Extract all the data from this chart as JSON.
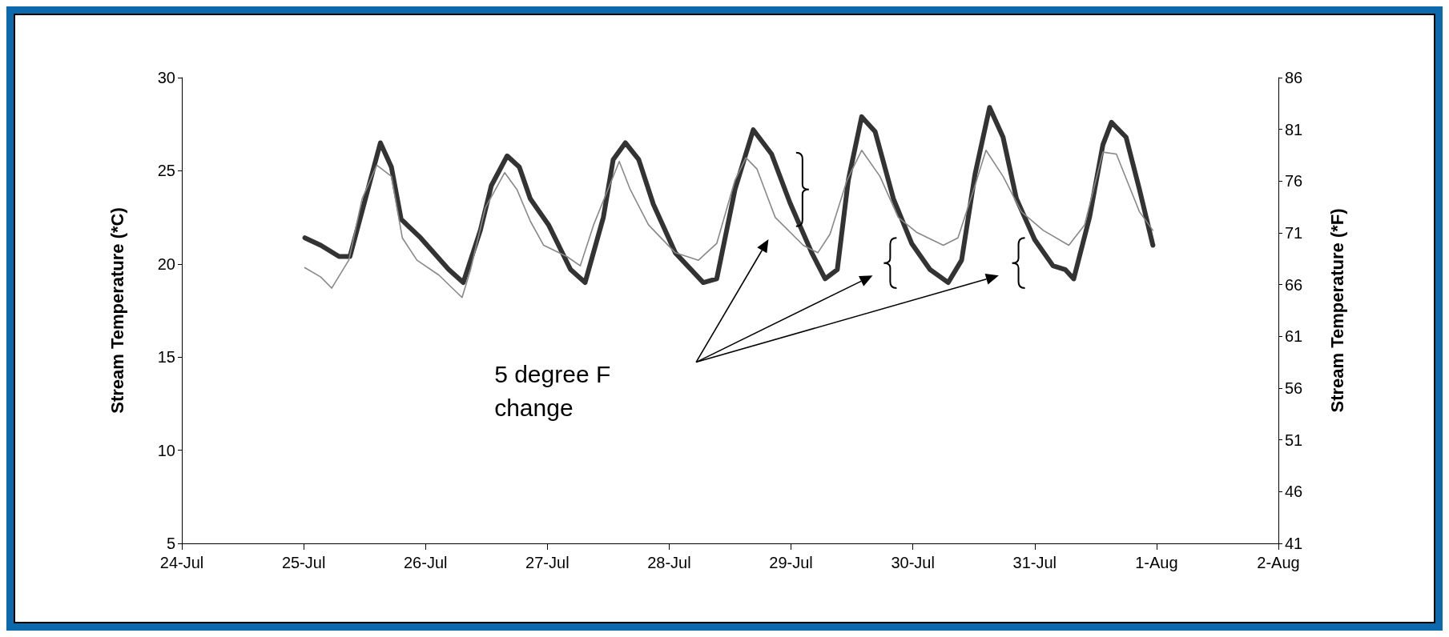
{
  "chart_data": {
    "type": "line",
    "ylabel": "Stream Temperature (*C)",
    "y2label": "Stream Temperature (*F)",
    "xlim": [
      "--07-24",
      "--08-02"
    ],
    "xticks": [
      {
        "value": "--07-24",
        "label": "24-Jul"
      },
      {
        "value": "--07-25",
        "label": "25-Jul"
      },
      {
        "value": "--07-26",
        "label": "26-Jul"
      },
      {
        "value": "--07-27",
        "label": "27-Jul"
      },
      {
        "value": "--07-28",
        "label": "28-Jul"
      },
      {
        "value": "--07-29",
        "label": "29-Jul"
      },
      {
        "value": "--07-30",
        "label": "30-Jul"
      },
      {
        "value": "--07-31",
        "label": "31-Jul"
      },
      {
        "value": "--08-01",
        "label": "1-Aug"
      },
      {
        "value": "--08-02",
        "label": "2-Aug"
      }
    ],
    "ylim": [
      5,
      30
    ],
    "yticks": [
      5,
      10,
      15,
      20,
      25,
      30
    ],
    "y2lim": [
      41,
      86
    ],
    "y2ticks": [
      41,
      46,
      51,
      56,
      61,
      66,
      71,
      76,
      81,
      86
    ],
    "series": [
      {
        "color": "#333333",
        "x": [
          "--07-25T00:14",
          "--07-25T03:22",
          "--07-25T06:58",
          "--07-25T09:07",
          "--07-25T15:07",
          "--07-25T17:17",
          "--07-25T19:12",
          "--07-25T23:02",
          "--07-26T04:34",
          "--07-26T07:26",
          "--07-26T10:48",
          "--07-26T12:58",
          "--07-26T16:05",
          "--07-26T18:29",
          "--07-26T20:38",
          "--07-27T00:14",
          "--07-27T04:34",
          "--07-27T07:26",
          "--07-27T11:02",
          "--07-27T12:58",
          "--07-27T15:22",
          "--07-27T18:00",
          "--07-27T20:53",
          "--07-28T01:12",
          "--07-28T06:43",
          "--07-28T09:22",
          "--07-28T12:58",
          "--07-28T16:34",
          "--07-28T20:10",
          "--07-28T23:46",
          "--07-29T04:05",
          "--07-29T06:43",
          "--07-29T09:07",
          "--07-29T11:17",
          "--07-29T13:55",
          "--07-29T16:34",
          "--07-29T20:10",
          "--07-29T23:46",
          "--07-30T03:22",
          "--07-30T06:58",
          "--07-30T09:36",
          "--07-30T12:14",
          "--07-30T15:07",
          "--07-30T17:46",
          "--07-30T20:24",
          "--07-31T00:00",
          "--07-31T03:36",
          "--07-31T06:00",
          "--07-31T07:41",
          "--07-31T10:48",
          "--07-31T13:26",
          "--07-31T15:07",
          "--07-31T18:00",
          "--07-31T20:38",
          "--07-31T23:17"
        ],
        "values": [
          21.4,
          21.0,
          20.4,
          20.4,
          26.5,
          25.2,
          22.4,
          21.4,
          19.7,
          19.0,
          21.8,
          24.2,
          25.8,
          25.2,
          23.5,
          22.1,
          19.7,
          19.0,
          22.5,
          25.6,
          26.5,
          25.6,
          23.2,
          20.6,
          19.0,
          19.2,
          24.0,
          27.2,
          25.9,
          23.3,
          20.6,
          19.2,
          19.7,
          24.5,
          27.9,
          27.1,
          23.5,
          21.1,
          19.7,
          19.0,
          20.2,
          24.8,
          28.4,
          26.8,
          23.5,
          21.3,
          19.9,
          19.7,
          19.2,
          22.5,
          26.4,
          27.6,
          26.8,
          24.0,
          21.0
        ]
      },
      {
        "color": "#888888",
        "x": [
          "--07-25T00:14",
          "--07-25T03:22",
          "--07-25T05:31",
          "--07-25T08:53",
          "--07-25T11:31",
          "--07-25T14:24",
          "--07-25T17:17",
          "--07-25T19:26",
          "--07-25T22:19",
          "--07-26T02:38",
          "--07-26T07:12",
          "--07-26T08:53",
          "--07-26T11:46",
          "--07-26T15:36",
          "--07-26T18:00",
          "--07-26T20:38",
          "--07-26T23:17",
          "--07-27T03:50",
          "--07-27T06:29",
          "--07-27T09:07",
          "--07-27T14:10",
          "--07-27T16:19",
          "--07-27T19:55",
          "--07-28T01:12",
          "--07-28T05:46",
          "--07-28T09:22",
          "--07-28T12:58",
          "--07-28T15:07",
          "--07-28T17:17",
          "--07-28T20:53",
          "--07-29T02:24",
          "--07-29T05:17",
          "--07-29T07:41",
          "--07-29T11:02",
          "--07-29T13:55",
          "--07-29T17:31",
          "--07-29T21:07",
          "--07-30T00:43",
          "--07-30T06:00",
          "--07-30T08:53",
          "--07-30T12:14",
          "--07-30T14:24",
          "--07-30T17:46",
          "--07-30T21:22",
          "--07-31T01:41",
          "--07-31T06:43",
          "--07-31T09:50",
          "--07-31T13:26",
          "--07-31T16:05",
          "--07-31T20:38",
          "--07-31T23:17"
        ],
        "values": [
          19.8,
          19.3,
          18.7,
          20.2,
          23.5,
          25.3,
          24.7,
          21.4,
          20.2,
          19.4,
          18.2,
          19.7,
          23.0,
          24.9,
          24.0,
          22.3,
          21.0,
          20.4,
          19.9,
          22.1,
          25.5,
          24.0,
          22.1,
          20.6,
          20.2,
          21.1,
          24.5,
          25.7,
          25.1,
          22.5,
          21.0,
          20.6,
          21.6,
          24.5,
          26.1,
          24.7,
          22.5,
          21.7,
          21.0,
          21.4,
          24.2,
          26.1,
          24.7,
          22.8,
          21.8,
          21.0,
          22.1,
          26.0,
          25.9,
          22.8,
          21.8
        ]
      }
    ],
    "annotations": [
      "5 degree F change"
    ],
    "grid": false,
    "marker": "none",
    "line_style": "solid"
  }
}
